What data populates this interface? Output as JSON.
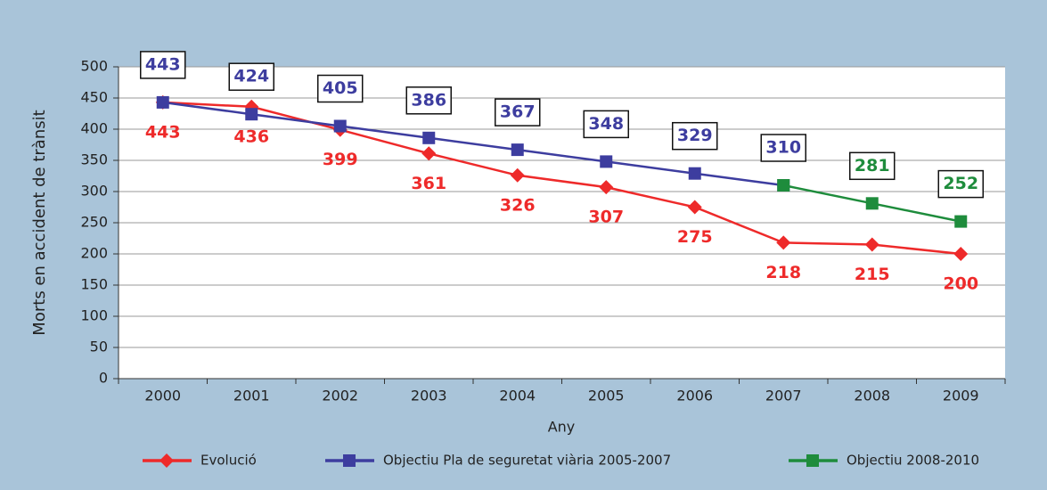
{
  "chart_data": {
    "type": "line",
    "categories": [
      "2000",
      "2001",
      "2002",
      "2003",
      "2004",
      "2005",
      "2006",
      "2007",
      "2008",
      "2009"
    ],
    "series": [
      {
        "name": "Evolució",
        "color": "#ee2a2a",
        "values": [
          443,
          436,
          399,
          361,
          326,
          307,
          275,
          218,
          215,
          200
        ]
      },
      {
        "name": "Objectiu Pla de seguretat viària 2005-2007",
        "color": "#3d3d9f",
        "values": [
          443,
          424,
          405,
          386,
          367,
          348,
          329,
          310,
          null,
          null
        ]
      },
      {
        "name": "Objectiu 2008-2010",
        "color": "#1e8c3c",
        "values": [
          null,
          null,
          null,
          null,
          null,
          null,
          null,
          310,
          281,
          252
        ]
      }
    ],
    "ylabel": "Morts en accident de trànsit",
    "xlabel": "Any",
    "ylim": [
      0,
      500
    ],
    "yticks": [
      0,
      50,
      100,
      150,
      200,
      250,
      300,
      350,
      400,
      450,
      500
    ],
    "grid": true
  }
}
